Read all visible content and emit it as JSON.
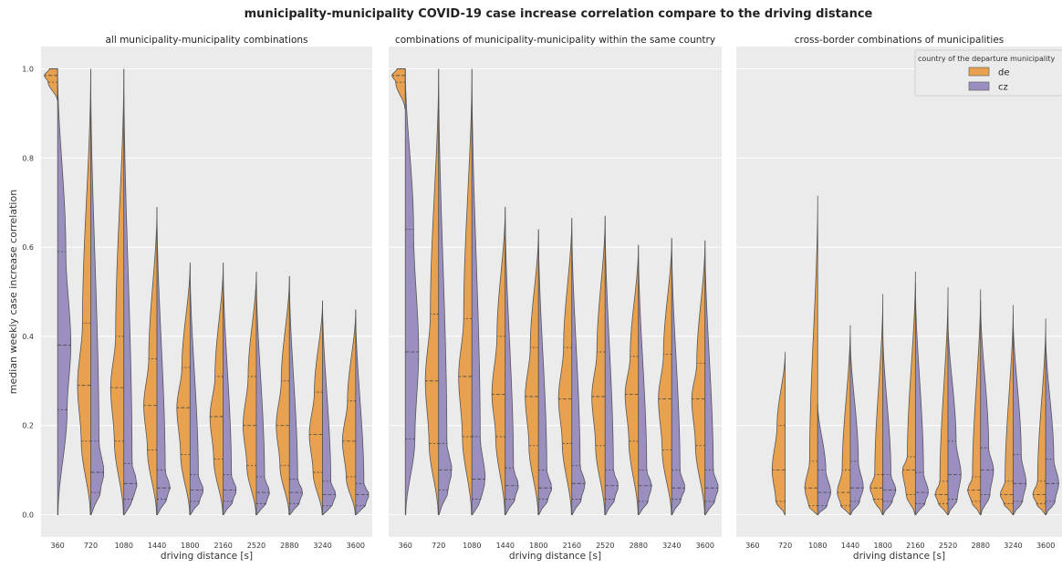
{
  "figure": {
    "suptitle": "municipality-municipality COVID-19 case increase correlation compare to the driving distance",
    "ylabel": "median weekly case increase correlation",
    "colors": {
      "panel_bg": "#ebebeb",
      "grid": "#ffffff",
      "de": "#e8a24f",
      "cz": "#9b8fc0",
      "outline": "#555555"
    }
  },
  "legend": {
    "title": "country of the departure municipality",
    "entries": [
      {
        "label": "de",
        "color": "#e8a24f"
      },
      {
        "label": "cz",
        "color": "#9b8fc0"
      }
    ]
  },
  "chart_data": [
    {
      "type": "violin",
      "title": "all municipality-municipality combinations",
      "xlabel": "driving distance [s]",
      "ylabel": "median weekly case increase correlation",
      "categories": [
        "360",
        "720",
        "1080",
        "1440",
        "1800",
        "2160",
        "2520",
        "2880",
        "3240",
        "3600"
      ],
      "ylim": [
        -0.05,
        1.05
      ],
      "yticks": [
        "0.0",
        "0.2",
        "0.4",
        "0.6",
        "0.8",
        "1.0"
      ],
      "grid": true,
      "split_by": "country of the departure municipality",
      "series": [
        {
          "name": "de",
          "violins": [
            {
              "min": 0.93,
              "max": 1.0,
              "q1": 0.97,
              "median": 0.985,
              "q3": 1.0
            },
            {
              "min": 0.0,
              "max": 1.0,
              "q1": 0.165,
              "median": 0.29,
              "q3": 0.43
            },
            {
              "min": 0.0,
              "max": 1.0,
              "q1": 0.165,
              "median": 0.285,
              "q3": 0.4
            },
            {
              "min": 0.0,
              "max": 0.69,
              "q1": 0.145,
              "median": 0.245,
              "q3": 0.35
            },
            {
              "min": 0.0,
              "max": 0.565,
              "q1": 0.135,
              "median": 0.24,
              "q3": 0.33
            },
            {
              "min": 0.0,
              "max": 0.565,
              "q1": 0.125,
              "median": 0.22,
              "q3": 0.31
            },
            {
              "min": 0.0,
              "max": 0.545,
              "q1": 0.11,
              "median": 0.2,
              "q3": 0.31
            },
            {
              "min": 0.0,
              "max": 0.535,
              "q1": 0.11,
              "median": 0.2,
              "q3": 0.3
            },
            {
              "min": 0.0,
              "max": 0.48,
              "q1": 0.095,
              "median": 0.18,
              "q3": 0.275
            },
            {
              "min": 0.0,
              "max": 0.46,
              "q1": 0.085,
              "median": 0.165,
              "q3": 0.255
            }
          ]
        },
        {
          "name": "cz",
          "violins": [
            {
              "min": 0.0,
              "max": 1.0,
              "q1": 0.235,
              "median": 0.38,
              "q3": 0.59
            },
            {
              "min": 0.0,
              "max": 1.0,
              "q1": 0.05,
              "median": 0.095,
              "q3": 0.165
            },
            {
              "min": 0.0,
              "max": 1.0,
              "q1": 0.035,
              "median": 0.07,
              "q3": 0.115
            },
            {
              "min": 0.0,
              "max": 0.69,
              "q1": 0.035,
              "median": 0.06,
              "q3": 0.1
            },
            {
              "min": 0.0,
              "max": 0.565,
              "q1": 0.03,
              "median": 0.055,
              "q3": 0.09
            },
            {
              "min": 0.0,
              "max": 0.565,
              "q1": 0.03,
              "median": 0.055,
              "q3": 0.09
            },
            {
              "min": 0.0,
              "max": 0.545,
              "q1": 0.025,
              "median": 0.05,
              "q3": 0.085
            },
            {
              "min": 0.0,
              "max": 0.535,
              "q1": 0.025,
              "median": 0.05,
              "q3": 0.08
            },
            {
              "min": 0.0,
              "max": 0.48,
              "q1": 0.02,
              "median": 0.045,
              "q3": 0.075
            },
            {
              "min": 0.0,
              "max": 0.46,
              "q1": 0.02,
              "median": 0.045,
              "q3": 0.07
            }
          ]
        }
      ]
    },
    {
      "type": "violin",
      "title": "combinations of municipality-municipality within the same country",
      "xlabel": "driving distance [s]",
      "categories": [
        "360",
        "720",
        "1080",
        "1440",
        "1800",
        "2160",
        "2520",
        "2880",
        "3240",
        "3600"
      ],
      "ylim": [
        -0.05,
        1.05
      ],
      "grid": true,
      "split_by": "country of the departure municipality",
      "series": [
        {
          "name": "de",
          "violins": [
            {
              "min": 0.91,
              "max": 1.0,
              "q1": 0.97,
              "median": 0.985,
              "q3": 1.0
            },
            {
              "min": 0.0,
              "max": 1.0,
              "q1": 0.16,
              "median": 0.3,
              "q3": 0.45
            },
            {
              "min": 0.0,
              "max": 1.0,
              "q1": 0.175,
              "median": 0.31,
              "q3": 0.44
            },
            {
              "min": 0.0,
              "max": 0.69,
              "q1": 0.175,
              "median": 0.27,
              "q3": 0.4
            },
            {
              "min": 0.0,
              "max": 0.64,
              "q1": 0.155,
              "median": 0.265,
              "q3": 0.375
            },
            {
              "min": 0.0,
              "max": 0.665,
              "q1": 0.16,
              "median": 0.26,
              "q3": 0.375
            },
            {
              "min": 0.0,
              "max": 0.67,
              "q1": 0.155,
              "median": 0.265,
              "q3": 0.365
            },
            {
              "min": 0.0,
              "max": 0.605,
              "q1": 0.165,
              "median": 0.27,
              "q3": 0.355
            },
            {
              "min": 0.0,
              "max": 0.62,
              "q1": 0.145,
              "median": 0.26,
              "q3": 0.36
            },
            {
              "min": 0.0,
              "max": 0.615,
              "q1": 0.155,
              "median": 0.26,
              "q3": 0.34
            }
          ]
        },
        {
          "name": "cz",
          "violins": [
            {
              "min": 0.0,
              "max": 1.0,
              "q1": 0.17,
              "median": 0.365,
              "q3": 0.64
            },
            {
              "min": 0.0,
              "max": 1.0,
              "q1": 0.055,
              "median": 0.1,
              "q3": 0.16
            },
            {
              "min": 0.0,
              "max": 1.0,
              "q1": 0.035,
              "median": 0.08,
              "q3": 0.175
            },
            {
              "min": 0.0,
              "max": 0.69,
              "q1": 0.035,
              "median": 0.065,
              "q3": 0.105
            },
            {
              "min": 0.0,
              "max": 0.64,
              "q1": 0.035,
              "median": 0.06,
              "q3": 0.1
            },
            {
              "min": 0.0,
              "max": 0.665,
              "q1": 0.035,
              "median": 0.07,
              "q3": 0.11
            },
            {
              "min": 0.0,
              "max": 0.67,
              "q1": 0.035,
              "median": 0.065,
              "q3": 0.1
            },
            {
              "min": 0.0,
              "max": 0.605,
              "q1": 0.03,
              "median": 0.065,
              "q3": 0.1
            },
            {
              "min": 0.0,
              "max": 0.62,
              "q1": 0.035,
              "median": 0.06,
              "q3": 0.1
            },
            {
              "min": 0.0,
              "max": 0.615,
              "q1": 0.03,
              "median": 0.06,
              "q3": 0.1
            }
          ]
        }
      ]
    },
    {
      "type": "violin",
      "title": "cross-border combinations of municipalities",
      "xlabel": "driving distance [s]",
      "categories": [
        "360",
        "720",
        "1080",
        "1440",
        "1800",
        "2160",
        "2520",
        "2880",
        "3240",
        "3600"
      ],
      "ylim": [
        -0.05,
        1.05
      ],
      "grid": true,
      "split_by": "country of the departure municipality",
      "series": [
        {
          "name": "de",
          "violins": [
            null,
            {
              "min": 0.0,
              "max": 0.365,
              "q1": 0.03,
              "median": 0.1,
              "q3": 0.2
            },
            {
              "min": 0.0,
              "max": 0.715,
              "q1": 0.02,
              "median": 0.06,
              "q3": 0.12
            },
            {
              "min": 0.0,
              "max": 0.425,
              "q1": 0.02,
              "median": 0.05,
              "q3": 0.1
            },
            {
              "min": 0.0,
              "max": 0.495,
              "q1": 0.035,
              "median": 0.06,
              "q3": 0.09
            },
            {
              "min": 0.0,
              "max": 0.545,
              "q1": 0.045,
              "median": 0.1,
              "q3": 0.13
            },
            {
              "min": 0.0,
              "max": 0.51,
              "q1": 0.025,
              "median": 0.045,
              "q3": 0.075
            },
            {
              "min": 0.0,
              "max": 0.505,
              "q1": 0.03,
              "median": 0.055,
              "q3": 0.085
            },
            {
              "min": 0.0,
              "max": 0.47,
              "q1": 0.025,
              "median": 0.045,
              "q3": 0.075
            },
            {
              "min": 0.0,
              "max": 0.44,
              "q1": 0.025,
              "median": 0.045,
              "q3": 0.075
            }
          ]
        },
        {
          "name": "cz",
          "violins": [
            null,
            null,
            {
              "min": 0.0,
              "max": 0.25,
              "q1": 0.02,
              "median": 0.05,
              "q3": 0.1
            },
            {
              "min": 0.0,
              "max": 0.4,
              "q1": 0.03,
              "median": 0.06,
              "q3": 0.12
            },
            {
              "min": 0.0,
              "max": 0.42,
              "q1": 0.03,
              "median": 0.055,
              "q3": 0.09
            },
            {
              "min": 0.0,
              "max": 0.52,
              "q1": 0.025,
              "median": 0.05,
              "q3": 0.095
            },
            {
              "min": 0.0,
              "max": 0.44,
              "q1": 0.035,
              "median": 0.09,
              "q3": 0.165
            },
            {
              "min": 0.0,
              "max": 0.48,
              "q1": 0.045,
              "median": 0.1,
              "q3": 0.15
            },
            {
              "min": 0.0,
              "max": 0.45,
              "q1": 0.03,
              "median": 0.07,
              "q3": 0.135
            },
            {
              "min": 0.0,
              "max": 0.405,
              "q1": 0.03,
              "median": 0.07,
              "q3": 0.125
            }
          ]
        }
      ]
    }
  ]
}
